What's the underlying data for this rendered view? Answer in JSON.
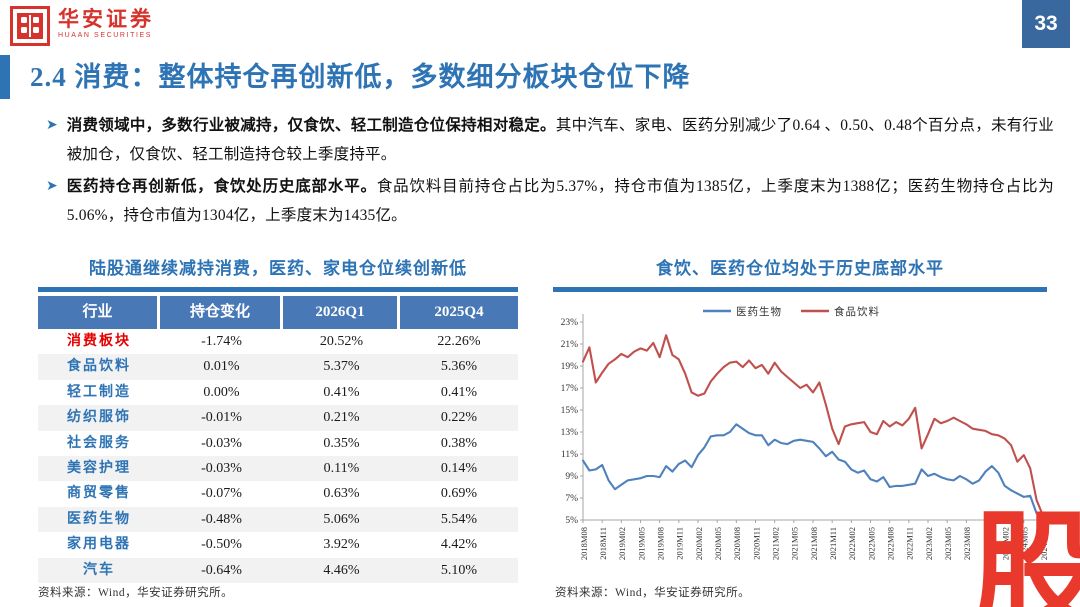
{
  "header": {
    "logo_cn": "华安证券",
    "logo_en": "HUAAN SECURITIES",
    "page_number": "33"
  },
  "title": "2.4 消费：整体持仓再创新低，多数细分板块仓位下降",
  "bullets": [
    {
      "bold": "消费领域中，多数行业被减持，仅食饮、轻工制造仓位保持相对稳定。",
      "rest": "其中汽车、家电、医药分别减少了0.64 、0.50、0.48个百分点，未有行业被加仓，仅食饮、轻工制造持仓较上季度持平。"
    },
    {
      "bold": "医药持仓再创新低，食饮处历史底部水平。",
      "rest": "食品饮料目前持仓占比为5.37%，持仓市值为1385亿，上季度末为1388亿；医药生物持仓占比为5.06%，持仓市值为1304亿，上季度末为1435亿。"
    }
  ],
  "table_panel": {
    "title": "陆股通继续减持消费，医药、家电仓位续创新低",
    "headers": [
      "行业",
      "持仓变化",
      "2026Q1",
      "2025Q4"
    ],
    "rows": [
      {
        "industry": "消费板块",
        "change": "-1.74%",
        "q1": "20.52%",
        "q4": "22.26%"
      },
      {
        "industry": "食品饮料",
        "change": "0.01%",
        "q1": "5.37%",
        "q4": "5.36%"
      },
      {
        "industry": "轻工制造",
        "change": "0.00%",
        "q1": "0.41%",
        "q4": "0.41%"
      },
      {
        "industry": "纺织服饰",
        "change": "-0.01%",
        "q1": "0.21%",
        "q4": "0.22%"
      },
      {
        "industry": "社会服务",
        "change": "-0.03%",
        "q1": "0.35%",
        "q4": "0.38%"
      },
      {
        "industry": "美容护理",
        "change": "-0.03%",
        "q1": "0.11%",
        "q4": "0.14%"
      },
      {
        "industry": "商贸零售",
        "change": "-0.07%",
        "q1": "0.63%",
        "q4": "0.69%"
      },
      {
        "industry": "医药生物",
        "change": "-0.48%",
        "q1": "5.06%",
        "q4": "5.54%"
      },
      {
        "industry": "家用电器",
        "change": "-0.50%",
        "q1": "3.92%",
        "q4": "4.42%"
      },
      {
        "industry": "汽车",
        "change": "-0.64%",
        "q1": "4.46%",
        "q4": "5.10%"
      }
    ],
    "source": "资料来源：Wind，华安证券研究所。"
  },
  "chart_panel": {
    "title": "食饮、医药仓位均处于历史底部水平",
    "source": "资料来源：Wind，华安证券研究所。"
  },
  "chart_data": {
    "type": "line",
    "title": "食饮、医药仓位均处于历史底部水平",
    "x_unit": "month",
    "x_start": "2018M08",
    "x_tick_labels": [
      "2018M08",
      "2018M11",
      "2019M02",
      "2019M05",
      "2019M08",
      "2019M11",
      "2020M02",
      "2020M05",
      "2020M08",
      "2020M11",
      "2021M02",
      "2021M05",
      "2021M08",
      "2021M11",
      "2022M02",
      "2022M05",
      "2022M08",
      "2022M11",
      "2023M02",
      "2023M05",
      "2023M08",
      "2023M11",
      "2024M02",
      "2024M05",
      "2024M08"
    ],
    "months_per_tick": 3,
    "ylim": [
      5,
      23
    ],
    "y_tick_step": 2,
    "y_tick_suffix": "%",
    "grid": false,
    "legend_position": "top",
    "series": [
      {
        "name": "医药生物",
        "color": "#4F81BD",
        "values": [
          10.4,
          9.5,
          9.6,
          10.0,
          8.6,
          7.8,
          8.2,
          8.6,
          8.7,
          8.8,
          9.0,
          9.0,
          8.9,
          9.9,
          9.4,
          10.1,
          10.4,
          9.8,
          10.9,
          11.6,
          12.6,
          12.7,
          12.7,
          13.0,
          13.7,
          13.3,
          12.9,
          12.7,
          12.7,
          11.8,
          12.3,
          12.0,
          11.9,
          12.2,
          12.3,
          12.2,
          12.1,
          11.5,
          10.8,
          11.2,
          10.5,
          10.3,
          9.6,
          9.3,
          9.5,
          8.7,
          8.5,
          8.9,
          8.0,
          8.1,
          8.1,
          8.2,
          8.3,
          9.6,
          9.0,
          9.2,
          8.9,
          8.7,
          8.6,
          9.0,
          8.7,
          8.3,
          8.6,
          9.4,
          9.9,
          9.3,
          8.1,
          7.7,
          7.4,
          7.1,
          7.2,
          5.6,
          5.3
        ]
      },
      {
        "name": "食品饮料",
        "color": "#C0504D",
        "values": [
          19.4,
          20.7,
          17.5,
          18.4,
          19.2,
          19.6,
          20.1,
          19.8,
          20.3,
          20.6,
          20.4,
          21.1,
          19.8,
          21.8,
          20.0,
          19.6,
          18.3,
          16.6,
          16.3,
          16.5,
          17.6,
          18.3,
          18.9,
          19.3,
          19.4,
          18.9,
          19.5,
          18.8,
          19.1,
          18.3,
          19.3,
          18.5,
          18.0,
          17.5,
          17.0,
          17.3,
          16.6,
          17.5,
          15.5,
          13.3,
          11.9,
          13.5,
          13.7,
          13.8,
          13.9,
          13.0,
          12.8,
          14.0,
          13.5,
          13.9,
          13.6,
          14.2,
          15.2,
          11.5,
          12.8,
          14.2,
          13.8,
          14.0,
          14.3,
          14.0,
          13.7,
          13.3,
          13.2,
          13.1,
          12.8,
          12.7,
          12.4,
          11.8,
          10.3,
          10.9,
          9.7,
          6.8,
          5.4
        ]
      }
    ]
  },
  "watermark": {
    "char": "股"
  },
  "colors": {
    "accent_blue": "#2E74B5",
    "header_blue": "#4878B6",
    "badge_blue": "#39689E",
    "logo_red": "#D6332C",
    "highlight_red": "#E60000",
    "watermark_red": "#E8392C",
    "line_blue": "#4F81BD",
    "line_red": "#C0504D",
    "alt_row": "#F2F2F2",
    "axis_gray": "#A6A6A6"
  }
}
